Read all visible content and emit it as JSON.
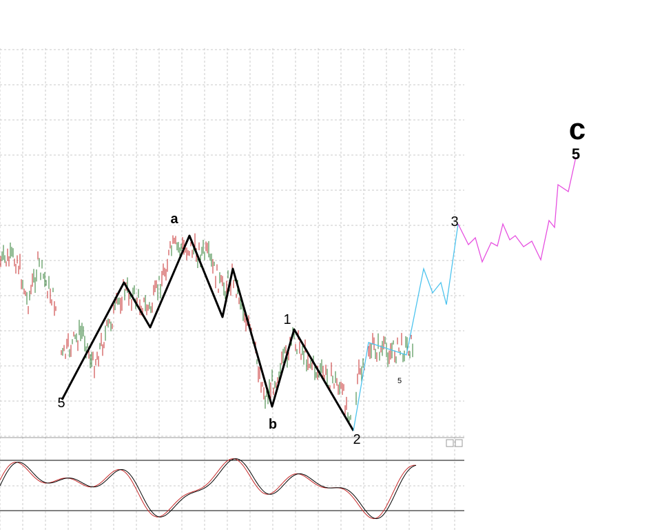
{
  "annotations": {
    "wave_a": "a",
    "wave_b": "b",
    "wave_c": "c",
    "start_5": "5",
    "wave_1": "1",
    "wave_2": "2",
    "wave_3": "3",
    "minor_5": "5",
    "wave_c_5": "5"
  }
}
